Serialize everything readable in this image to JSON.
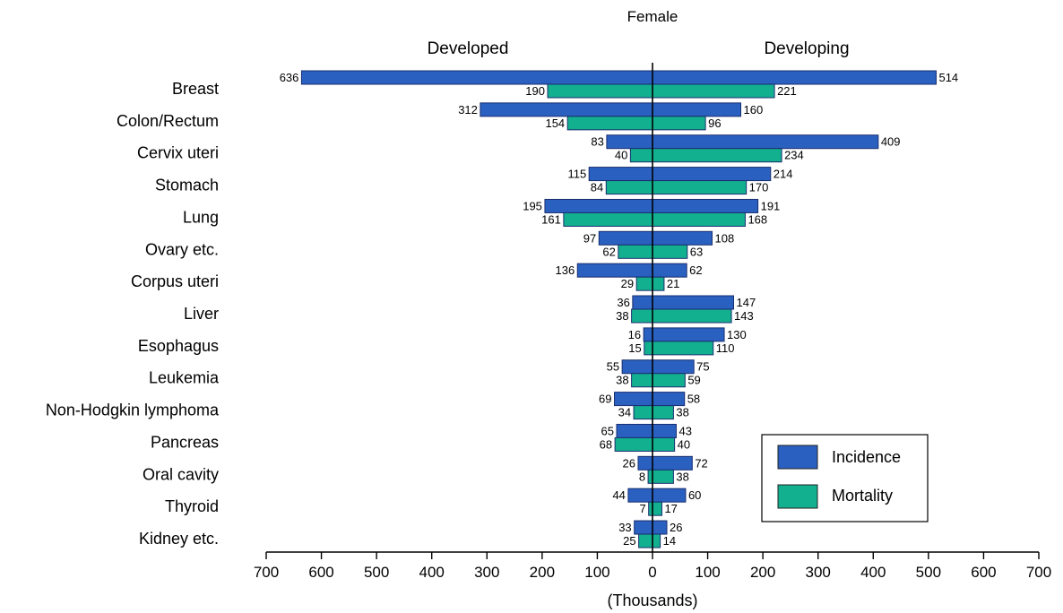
{
  "chart_data": {
    "type": "bar",
    "orientation": "horizontal",
    "layout": "diverging",
    "title": "Female",
    "left_group": "Developed",
    "right_group": "Developing",
    "xlabel": "(Thousands)",
    "xlim": [
      -700,
      700
    ],
    "xticks": [
      "700",
      "600",
      "500",
      "400",
      "300",
      "200",
      "100",
      "0",
      "100",
      "200",
      "300",
      "400",
      "500",
      "600",
      "700"
    ],
    "grid": false,
    "legend_position": "bottom-right",
    "categories": [
      "Breast",
      "Colon/Rectum",
      "Cervix uteri",
      "Stomach",
      "Lung",
      "Ovary etc.",
      "Corpus uteri",
      "Liver",
      "Esophagus",
      "Leukemia",
      "Non-Hodgkin lymphoma",
      "Pancreas",
      "Oral cavity",
      "Thyroid",
      "Kidney etc."
    ],
    "series": [
      {
        "name": "Incidence",
        "color": "#2a60c0",
        "developed": [
          636,
          312,
          83,
          115,
          195,
          97,
          136,
          36,
          16,
          55,
          69,
          65,
          26,
          44,
          33
        ],
        "developing": [
          514,
          160,
          409,
          214,
          191,
          108,
          62,
          147,
          130,
          75,
          58,
          43,
          72,
          60,
          26
        ]
      },
      {
        "name": "Mortality",
        "color": "#13b090",
        "developed": [
          190,
          154,
          40,
          84,
          161,
          62,
          29,
          38,
          15,
          38,
          34,
          68,
          8,
          7,
          25
        ],
        "developing": [
          221,
          96,
          234,
          170,
          168,
          63,
          21,
          143,
          110,
          59,
          38,
          40,
          38,
          17,
          14
        ]
      }
    ]
  }
}
